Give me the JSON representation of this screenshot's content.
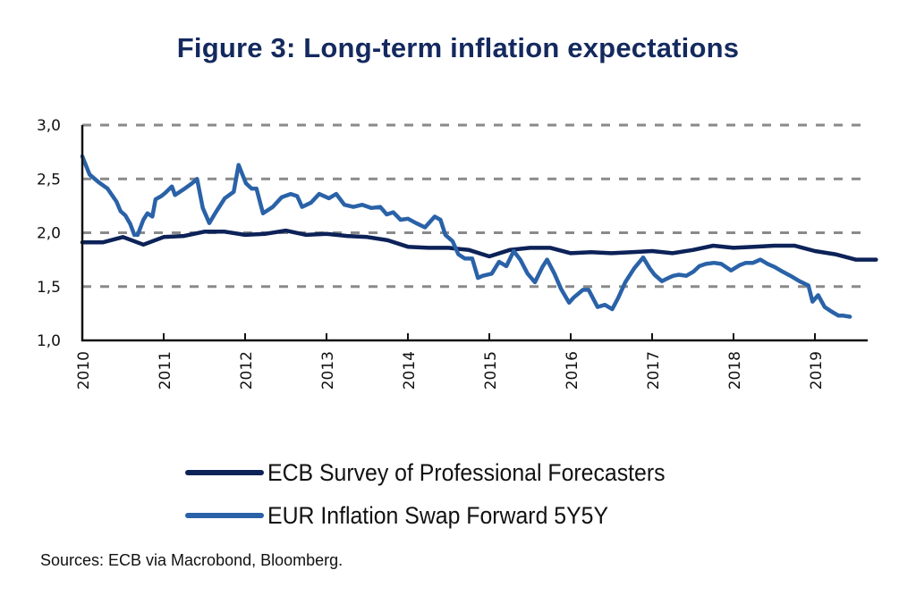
{
  "chart_data": {
    "type": "line",
    "title": "Figure 3: Long-term inflation expectations",
    "xlabel": "",
    "ylabel": "",
    "ylim": [
      1.0,
      3.0
    ],
    "xlim": [
      2010,
      2019.75
    ],
    "yticks": [
      "1,0",
      "1,5",
      "2,0",
      "2,5",
      "3,0"
    ],
    "ytick_values": [
      1.0,
      1.5,
      2.0,
      2.5,
      3.0
    ],
    "xticks": [
      "2010",
      "2011",
      "2012",
      "2013",
      "2014",
      "2015",
      "2016",
      "2017",
      "2018",
      "2019"
    ],
    "xtick_values": [
      2010,
      2011,
      2012,
      2013,
      2014,
      2015,
      2016,
      2017,
      2018,
      2019
    ],
    "grid": "horizontal dashed",
    "legend_position": "bottom",
    "series": [
      {
        "name": "ECB Survey of Professional Forecasters",
        "color": "#0c2258",
        "x": [
          2010.0,
          2010.25,
          2010.5,
          2010.75,
          2011.0,
          2011.25,
          2011.5,
          2011.75,
          2012.0,
          2012.25,
          2012.5,
          2012.75,
          2013.0,
          2013.25,
          2013.5,
          2013.75,
          2014.0,
          2014.25,
          2014.5,
          2014.75,
          2015.0,
          2015.25,
          2015.5,
          2015.75,
          2016.0,
          2016.25,
          2016.5,
          2016.75,
          2017.0,
          2017.25,
          2017.5,
          2017.75,
          2018.0,
          2018.25,
          2018.5,
          2018.75,
          2019.0,
          2019.25,
          2019.5,
          2019.75
        ],
        "values": [
          1.91,
          1.91,
          1.96,
          1.89,
          1.96,
          1.97,
          2.01,
          2.01,
          1.98,
          1.99,
          2.02,
          1.98,
          1.99,
          1.97,
          1.96,
          1.93,
          1.87,
          1.86,
          1.86,
          1.84,
          1.78,
          1.84,
          1.86,
          1.86,
          1.81,
          1.82,
          1.81,
          1.82,
          1.83,
          1.81,
          1.84,
          1.88,
          1.86,
          1.87,
          1.88,
          1.88,
          1.83,
          1.8,
          1.75,
          1.75
        ]
      },
      {
        "name": "EUR Inflation Swap Forward 5Y5Y",
        "color": "#2a62a8",
        "x": [
          2010.0,
          2010.09,
          2010.2,
          2010.31,
          2010.42,
          2010.47,
          2010.53,
          2010.59,
          2010.64,
          2010.68,
          2010.75,
          2010.8,
          2010.86,
          2010.9,
          2010.97,
          2011.02,
          2011.1,
          2011.14,
          2011.24,
          2011.35,
          2011.41,
          2011.48,
          2011.56,
          2011.64,
          2011.75,
          2011.86,
          2011.92,
          2012.01,
          2012.08,
          2012.14,
          2012.22,
          2012.34,
          2012.45,
          2012.56,
          2012.64,
          2012.7,
          2012.81,
          2012.91,
          2013.03,
          2013.12,
          2013.22,
          2013.33,
          2013.44,
          2013.55,
          2013.66,
          2013.74,
          2013.82,
          2013.91,
          2014.0,
          2014.1,
          2014.21,
          2014.33,
          2014.4,
          2014.46,
          2014.55,
          2014.62,
          2014.7,
          2014.79,
          2014.86,
          2014.92,
          2015.03,
          2015.12,
          2015.21,
          2015.3,
          2015.38,
          2015.47,
          2015.56,
          2015.65,
          2015.71,
          2015.8,
          2015.88,
          2015.98,
          2016.04,
          2016.15,
          2016.22,
          2016.33,
          2016.42,
          2016.51,
          2016.58,
          2016.67,
          2016.78,
          2016.89,
          2016.97,
          2017.03,
          2017.12,
          2017.2,
          2017.26,
          2017.33,
          2017.42,
          2017.51,
          2017.58,
          2017.66,
          2017.76,
          2017.85,
          2017.97,
          2018.08,
          2018.15,
          2018.24,
          2018.33,
          2018.42,
          2018.51,
          2018.6,
          2018.7,
          2018.81,
          2018.92,
          2018.97,
          2019.04,
          2019.12,
          2019.2,
          2019.29,
          2019.35,
          2019.43
        ],
        "values": [
          2.71,
          2.54,
          2.47,
          2.41,
          2.29,
          2.2,
          2.16,
          2.08,
          1.98,
          1.98,
          2.12,
          2.18,
          2.15,
          2.31,
          2.34,
          2.37,
          2.43,
          2.35,
          2.4,
          2.46,
          2.5,
          2.23,
          2.09,
          2.19,
          2.32,
          2.38,
          2.63,
          2.46,
          2.41,
          2.41,
          2.18,
          2.24,
          2.33,
          2.36,
          2.34,
          2.24,
          2.28,
          2.36,
          2.32,
          2.36,
          2.26,
          2.24,
          2.26,
          2.23,
          2.24,
          2.17,
          2.19,
          2.12,
          2.13,
          2.09,
          2.05,
          2.15,
          2.12,
          1.98,
          1.92,
          1.8,
          1.76,
          1.76,
          1.58,
          1.6,
          1.62,
          1.73,
          1.69,
          1.83,
          1.75,
          1.62,
          1.54,
          1.68,
          1.75,
          1.62,
          1.48,
          1.35,
          1.4,
          1.47,
          1.47,
          1.31,
          1.33,
          1.29,
          1.39,
          1.54,
          1.67,
          1.77,
          1.67,
          1.61,
          1.55,
          1.58,
          1.6,
          1.61,
          1.6,
          1.64,
          1.69,
          1.71,
          1.72,
          1.71,
          1.65,
          1.7,
          1.72,
          1.72,
          1.75,
          1.71,
          1.68,
          1.64,
          1.6,
          1.55,
          1.51,
          1.36,
          1.42,
          1.31,
          1.27,
          1.23,
          1.23,
          1.22
        ]
      }
    ]
  },
  "legend": {
    "items": [
      {
        "label": "ECB Survey of Professional Forecasters",
        "color": "#0c2258"
      },
      {
        "label": "EUR Inflation Swap Forward 5Y5Y",
        "color": "#2a62a8"
      }
    ]
  },
  "footer": {
    "sources": "Sources: ECB via Macrobond, Bloomberg."
  }
}
